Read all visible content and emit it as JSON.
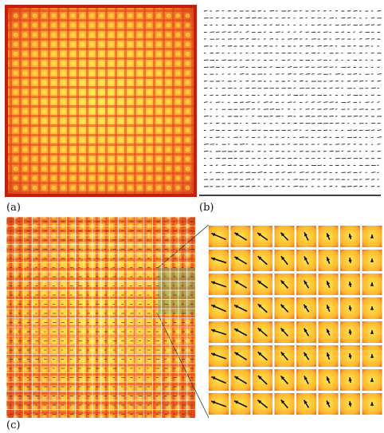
{
  "panels": {
    "a": {
      "label": "(a)"
    },
    "b": {
      "label": "(b)"
    },
    "c": {
      "label": "(c)"
    }
  }
}
